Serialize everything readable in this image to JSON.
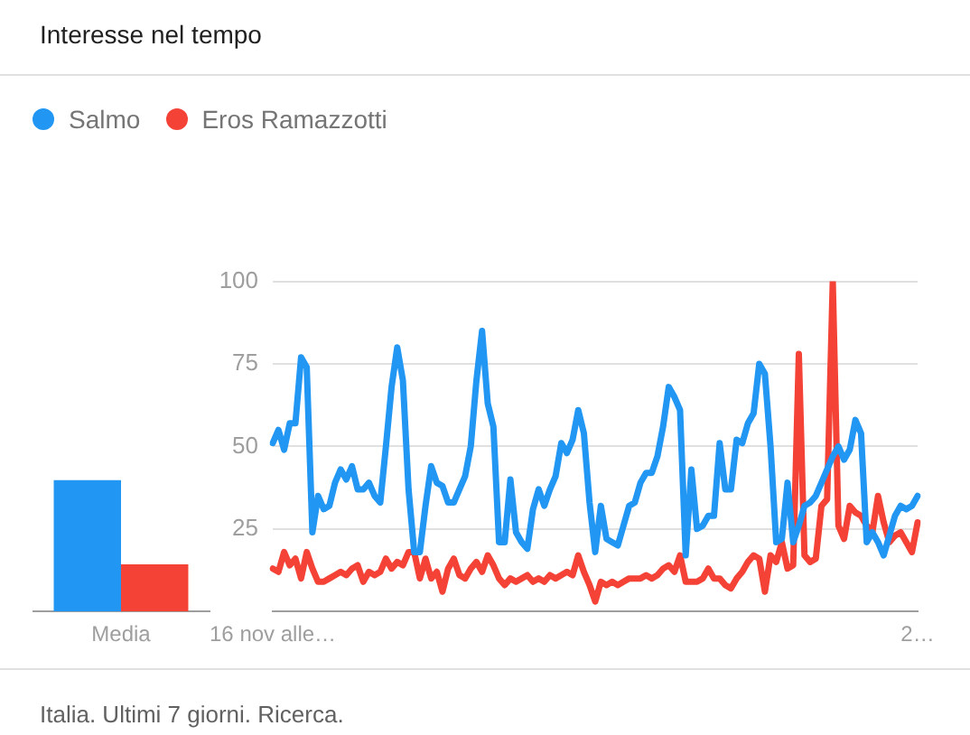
{
  "chart_data": [
    {
      "type": "bar",
      "title": "Interesse nel tempo",
      "categories": [
        "Media"
      ],
      "series": [
        {
          "color": "#2196f3",
          "values": [
            39
          ]
        },
        {
          "color": "#f44336",
          "values": [
            14
          ]
        }
      ],
      "ylim": [
        0,
        100
      ],
      "tick_labels": "x"
    },
    {
      "type": "line",
      "categories": [
        "16 nov alle…",
        null,
        null,
        null,
        null,
        null,
        null,
        null,
        null,
        null,
        null,
        null,
        null,
        null,
        null,
        null,
        null,
        null,
        null,
        null,
        null,
        null,
        null,
        null,
        null,
        null,
        null,
        null,
        null,
        null,
        null,
        null,
        null,
        null,
        null,
        null,
        null,
        null,
        null,
        null,
        null,
        null,
        null,
        null,
        null,
        null,
        null,
        null,
        null,
        null,
        null,
        null,
        null,
        null,
        null,
        null,
        null,
        null,
        null,
        null,
        null,
        null,
        null,
        null,
        null,
        null,
        null,
        null,
        null,
        null,
        null,
        null,
        null,
        null,
        null,
        null,
        null,
        null,
        null,
        null,
        null,
        null,
        null,
        null,
        null,
        null,
        null,
        null,
        null,
        null,
        null,
        null,
        null,
        null,
        null,
        null,
        null,
        null,
        null,
        null,
        null,
        null,
        null,
        null,
        null,
        null,
        null,
        null,
        null,
        null,
        null,
        null,
        null,
        null,
        "2…"
      ],
      "series": [
        {
          "name": "Salmo",
          "color": "#2196f3",
          "values": [
            51,
            55,
            49,
            57,
            57,
            77,
            74,
            24,
            35,
            31,
            32,
            39,
            43,
            40,
            44,
            37,
            37,
            39,
            35,
            33,
            50,
            68,
            80,
            70,
            37,
            18,
            18,
            32,
            44,
            39,
            38,
            33,
            33,
            37,
            41,
            50,
            70,
            85,
            63,
            56,
            21,
            21,
            40,
            24,
            21,
            19,
            31,
            37,
            32,
            37,
            41,
            51,
            48,
            52,
            61,
            54,
            33,
            18,
            32,
            22,
            21,
            20,
            26,
            32,
            33,
            39,
            42,
            42,
            47,
            56,
            68,
            65,
            61,
            17,
            43,
            25,
            26,
            29,
            29,
            51,
            37,
            37,
            52,
            51,
            57,
            60,
            75,
            72,
            50,
            21,
            22,
            39,
            21,
            26,
            32,
            33,
            35,
            39,
            43,
            47,
            50,
            46,
            49,
            58,
            54,
            21,
            24,
            21,
            17,
            23,
            29,
            32,
            31,
            32,
            35
          ]
        },
        {
          "name": "Eros Ramazzotti",
          "color": "#f44336",
          "values": [
            13,
            12,
            18,
            14,
            16,
            10,
            18,
            13,
            9,
            9,
            10,
            11,
            12,
            11,
            13,
            14,
            9,
            12,
            11,
            12,
            16,
            13,
            15,
            14,
            18,
            18,
            10,
            16,
            10,
            12,
            6,
            13,
            16,
            11,
            10,
            13,
            15,
            12,
            17,
            14,
            10,
            8,
            10,
            9,
            10,
            11,
            9,
            10,
            9,
            11,
            10,
            11,
            12,
            11,
            17,
            12,
            8,
            3,
            9,
            8,
            9,
            8,
            9,
            10,
            10,
            10,
            11,
            10,
            11,
            13,
            14,
            12,
            17,
            9,
            9,
            9,
            10,
            13,
            10,
            10,
            8,
            7,
            10,
            12,
            15,
            17,
            16,
            6,
            17,
            15,
            21,
            13,
            14,
            78,
            17,
            15,
            16,
            32,
            34,
            100,
            26,
            22,
            32,
            30,
            29,
            26,
            24,
            35,
            27,
            21,
            23,
            24,
            21,
            18,
            27
          ]
        }
      ],
      "ylim": [
        0,
        100
      ],
      "yticks": [
        {
          "value": 0,
          "label": null
        },
        25,
        50,
        75,
        100
      ],
      "grid": "y",
      "legend": "top left",
      "marker": "none",
      "annotations": [
        "Italia. Ultimi 7 giorni. Ricerca."
      ]
    }
  ]
}
